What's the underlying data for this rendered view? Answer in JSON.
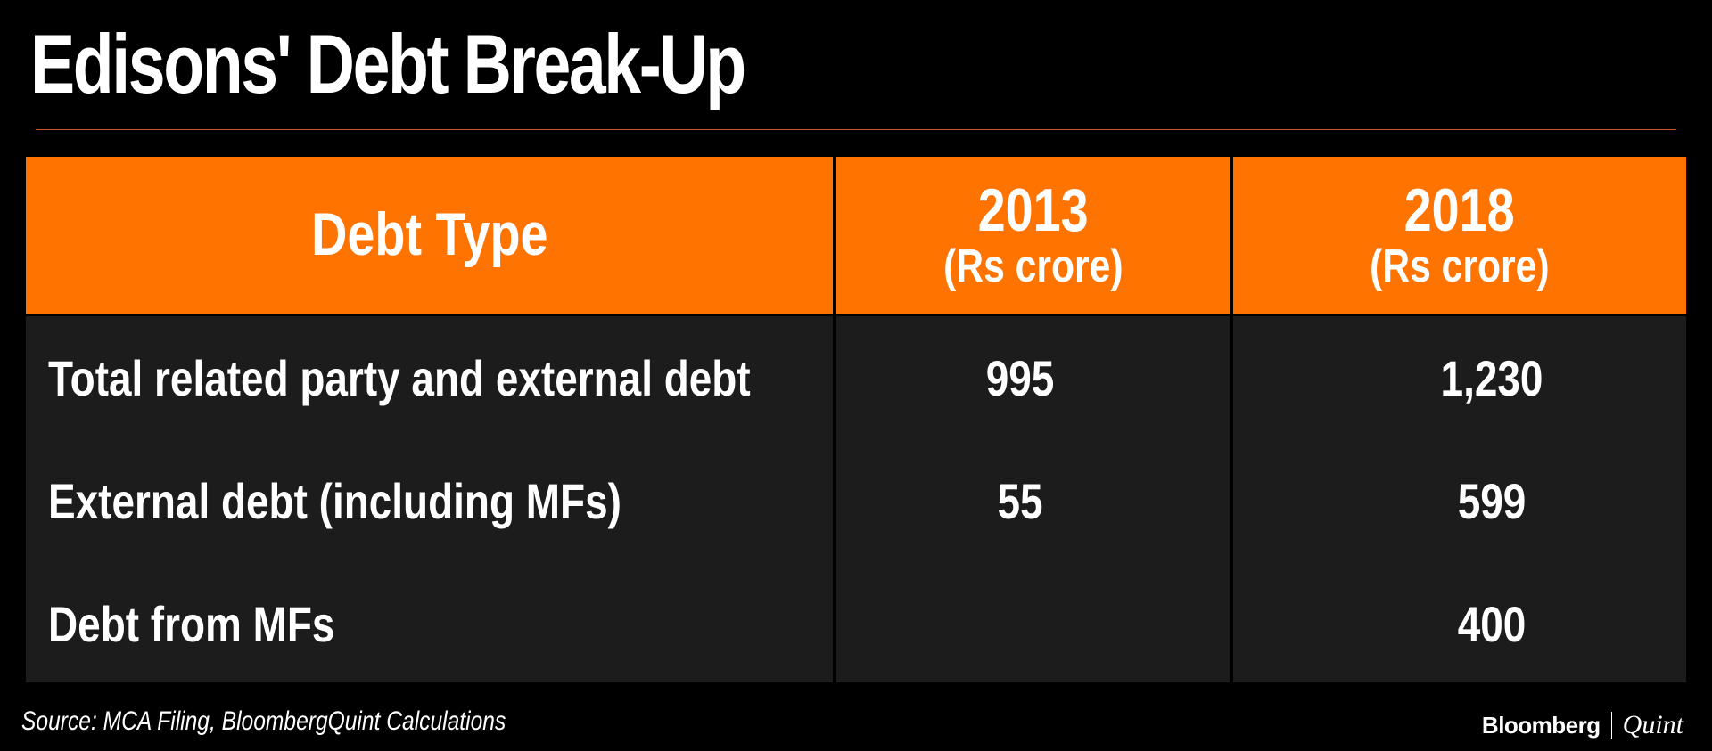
{
  "title": "Edisons' Debt Break-Up",
  "source": "Source: MCA Filing, BloombergQuint Calculations",
  "logo": {
    "brand": "Bloomberg",
    "partner": "Quint"
  },
  "colors": {
    "header": "#ff7300",
    "body": "#1c1c1c",
    "background": "#000000",
    "text": "#ffffff"
  },
  "chart_data": {
    "type": "table",
    "title": "Edisons' Debt Break-Up",
    "columns": [
      {
        "label": "Debt Type",
        "sub": ""
      },
      {
        "label": "2013",
        "sub": "(Rs crore)"
      },
      {
        "label": "2018",
        "sub": "(Rs crore)"
      }
    ],
    "rows": [
      {
        "label": "Total related party and external debt",
        "v2013": "995",
        "v2018": "1,230"
      },
      {
        "label": "External debt (including MFs)",
        "v2013": "55",
        "v2018": "599"
      },
      {
        "label": "Debt from MFs",
        "v2013": "",
        "v2018": "400"
      }
    ]
  }
}
